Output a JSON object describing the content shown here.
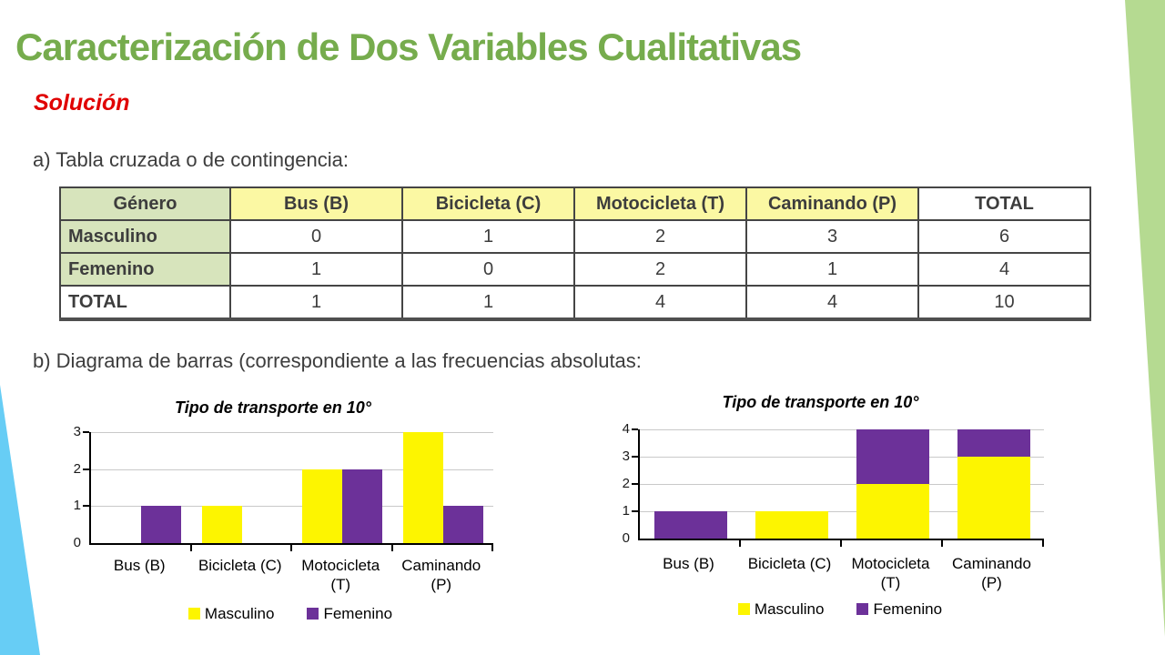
{
  "slide": {
    "title": "Caracterización de Dos Variables Cualitativas",
    "solution_label": "Solución",
    "section_a_label": "a) Tabla cruzada o de contingencia:",
    "section_b_label": "b) Diagrama de barras (correspondiente a las frecuencias absolutas:"
  },
  "table": {
    "headers": [
      "Género",
      "Bus (B)",
      "Bicicleta (C)",
      "Motocicleta (T)",
      "Caminando (P)",
      "TOTAL"
    ],
    "rows": [
      {
        "label": "Masculino",
        "values": [
          "0",
          "1",
          "2",
          "3",
          "6"
        ]
      },
      {
        "label": "Femenino",
        "values": [
          "1",
          "0",
          "2",
          "1",
          "4"
        ]
      },
      {
        "label": "TOTAL",
        "values": [
          "1",
          "1",
          "4",
          "4",
          "10"
        ]
      }
    ]
  },
  "chart_data": [
    {
      "type": "bar",
      "variant": "grouped",
      "title": "Tipo de transporte en 10°",
      "categories": [
        "Bus (B)",
        "Bicicleta (C)",
        "Motocicleta (T)",
        "Caminando (P)"
      ],
      "category_lines": [
        [
          "Bus (B)"
        ],
        [
          "Bicicleta (C)"
        ],
        [
          "Motocicleta",
          "(T)"
        ],
        [
          "Caminando",
          "(P)"
        ]
      ],
      "series": [
        {
          "name": "Masculino",
          "color": "#fdf500",
          "values": [
            0,
            1,
            2,
            3
          ]
        },
        {
          "name": "Femenino",
          "color": "#6c3199",
          "values": [
            1,
            0,
            2,
            1
          ]
        }
      ],
      "xlabel": "",
      "ylabel": "",
      "ylim": [
        0,
        3
      ],
      "yticks": [
        0,
        1,
        2,
        3
      ],
      "grid": true,
      "legend_position": "bottom"
    },
    {
      "type": "bar",
      "variant": "stacked",
      "title": "Tipo de transporte en 10°",
      "categories": [
        "Bus (B)",
        "Bicicleta (C)",
        "Motocicleta (T)",
        "Caminando (P)"
      ],
      "category_lines": [
        [
          "Bus (B)"
        ],
        [
          "Bicicleta (C)"
        ],
        [
          "Motocicleta",
          "(T)"
        ],
        [
          "Caminando",
          "(P)"
        ]
      ],
      "series": [
        {
          "name": "Masculino",
          "color": "#fdf500",
          "values": [
            0,
            1,
            2,
            3
          ]
        },
        {
          "name": "Femenino",
          "color": "#6c3199",
          "values": [
            1,
            0,
            2,
            1
          ]
        }
      ],
      "xlabel": "",
      "ylabel": "",
      "ylim": [
        0,
        4
      ],
      "yticks": [
        0,
        1,
        2,
        3,
        4
      ],
      "grid": true,
      "legend_position": "bottom"
    }
  ],
  "colors": {
    "title_green": "#76ac4d",
    "solution_red": "#e00000",
    "body_text": "#3d3d3d",
    "table_header_green": "#d7e4bc",
    "table_header_yellow": "#fbf8a3",
    "bar_yellow": "#fdf500",
    "bar_purple": "#6c3199",
    "decoration_green": "#b5da91",
    "decoration_blue": "#67cdf5"
  }
}
